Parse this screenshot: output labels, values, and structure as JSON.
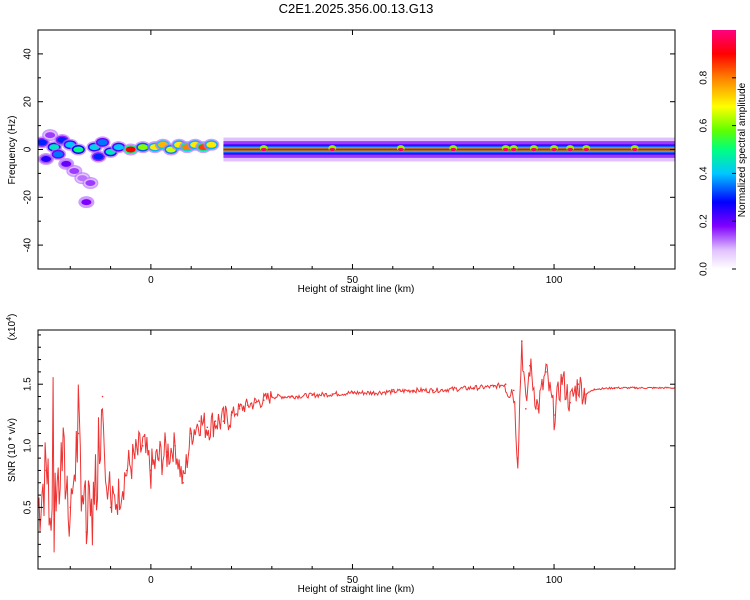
{
  "title": "C2E1.2025.356.00.13.G13",
  "chart_data": [
    {
      "type": "heatmap",
      "name": "spectrogram",
      "xlabel": "Height of straight line (km)",
      "ylabel": "Frequency (Hz)",
      "xlim": [
        -28,
        130
      ],
      "ylim": [
        -50,
        50
      ],
      "x_ticks": [
        0,
        50,
        100
      ],
      "x_tick_labels": [
        "0",
        "50",
        "100"
      ],
      "y_ticks": [
        -40,
        -20,
        0,
        20,
        40
      ],
      "y_tick_labels": [
        "-40",
        "-20",
        "0",
        "20",
        "40"
      ],
      "colorbar": {
        "label": "Normalized spectral amplitude",
        "range": [
          0,
          1
        ],
        "ticks": [
          0,
          0.2,
          0.4,
          0.6,
          0.8
        ],
        "tick_labels": [
          "0.0",
          "0.2",
          "0.4",
          "0.6",
          "0.8"
        ],
        "colors": [
          "#ffffff",
          "#e0c0ff",
          "#8000ff",
          "#0000ff",
          "#00c8ff",
          "#00ff80",
          "#60ff00",
          "#ffff00",
          "#ff8000",
          "#ff0000",
          "#ff0080"
        ]
      },
      "ridge": {
        "description": "signal concentrated near 0 Hz",
        "x_start": -28,
        "x_end": 130,
        "noisy_until_km": 18,
        "scatter_points": [
          {
            "x": -27,
            "y": 3,
            "v": 0.3
          },
          {
            "x": -26,
            "y": -4,
            "v": 0.25
          },
          {
            "x": -25,
            "y": 6,
            "v": 0.15
          },
          {
            "x": -24,
            "y": 1,
            "v": 0.45
          },
          {
            "x": -23,
            "y": -2,
            "v": 0.35
          },
          {
            "x": -22,
            "y": 4,
            "v": 0.3
          },
          {
            "x": -21,
            "y": -6,
            "v": 0.2
          },
          {
            "x": -20,
            "y": 2,
            "v": 0.4
          },
          {
            "x": -19,
            "y": -9,
            "v": 0.15
          },
          {
            "x": -18,
            "y": 0,
            "v": 0.5
          },
          {
            "x": -17,
            "y": -12,
            "v": 0.12
          },
          {
            "x": -16,
            "y": -22,
            "v": 0.18
          },
          {
            "x": -15,
            "y": -14,
            "v": 0.15
          },
          {
            "x": -14,
            "y": 1,
            "v": 0.42
          },
          {
            "x": -13,
            "y": -3,
            "v": 0.3
          },
          {
            "x": -12,
            "y": 3,
            "v": 0.35
          },
          {
            "x": -10,
            "y": -1,
            "v": 0.45
          },
          {
            "x": -8,
            "y": 1,
            "v": 0.4
          },
          {
            "x": -5,
            "y": 0,
            "v": 0.9
          },
          {
            "x": -2,
            "y": 1,
            "v": 0.6
          },
          {
            "x": 1,
            "y": 1,
            "v": 0.7
          },
          {
            "x": 3,
            "y": 2,
            "v": 0.75
          },
          {
            "x": 5,
            "y": 0,
            "v": 0.65
          },
          {
            "x": 7,
            "y": 2,
            "v": 0.7
          },
          {
            "x": 9,
            "y": 1,
            "v": 0.8
          },
          {
            "x": 11,
            "y": 2,
            "v": 0.7
          },
          {
            "x": 13,
            "y": 1,
            "v": 0.85
          },
          {
            "x": 15,
            "y": 2,
            "v": 0.7
          }
        ]
      }
    },
    {
      "type": "line",
      "name": "snr",
      "xlabel": "Height of straight line (km)",
      "ylabel": "SNR (10 * v/v)",
      "y_multiplier_label": "(x10",
      "y_multiplier_exp": "4",
      "y_multiplier_close": ")",
      "xlim": [
        -28,
        130
      ],
      "ylim": [
        0,
        19400
      ],
      "x_ticks": [
        0,
        50,
        100
      ],
      "x_tick_labels": [
        "0",
        "50",
        "100"
      ],
      "y_ticks": [
        5000,
        10000,
        15000
      ],
      "y_tick_labels": [
        "0.5",
        "1.0",
        "1.5"
      ],
      "series": [
        {
          "name": "SNR",
          "color": "#ee3333",
          "x": [
            -28,
            -26,
            -24,
            -22,
            -20,
            -18,
            -16,
            -14,
            -12,
            -10,
            -8,
            -6,
            -4,
            -2,
            0,
            2,
            4,
            6,
            8,
            10,
            12,
            14,
            16,
            18,
            20,
            22,
            24,
            26,
            28,
            30,
            35,
            40,
            45,
            50,
            55,
            60,
            65,
            70,
            75,
            80,
            85,
            88,
            90,
            91,
            92,
            93,
            94,
            96,
            98,
            100,
            102,
            104,
            106,
            108,
            110,
            115,
            120,
            125,
            130
          ],
          "y": [
            5000,
            8000,
            4000,
            9000,
            5000,
            11000,
            3000,
            6000,
            14000,
            5000,
            6000,
            8000,
            9000,
            10000,
            8000,
            9000,
            9500,
            10000,
            7000,
            11000,
            12000,
            11500,
            12000,
            12000,
            12500,
            13000,
            13300,
            13500,
            13700,
            14000,
            14000,
            14100,
            14200,
            14300,
            14300,
            14400,
            14500,
            14500,
            14600,
            14700,
            14800,
            15000,
            14500,
            9000,
            18500,
            13000,
            16500,
            13000,
            16000,
            12500,
            15500,
            13500,
            15000,
            14200,
            14600,
            14700,
            14700,
            14700,
            14700
          ]
        }
      ]
    }
  ]
}
